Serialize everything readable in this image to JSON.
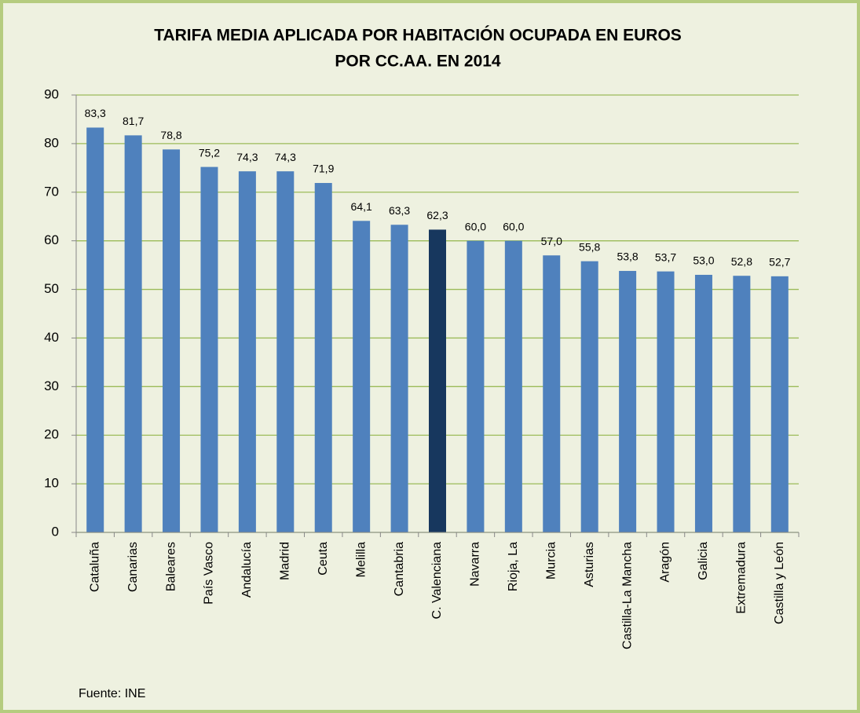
{
  "chart_data": {
    "type": "bar",
    "title": [
      "TARIFA MEDIA APLICADA POR HABITACIÓN OCUPADA EN EUROS",
      "POR CC.AA. EN 2014"
    ],
    "categories": [
      "Cataluña",
      "Canarias",
      "Baleares",
      "País Vasco",
      "Andalucía",
      "Madrid",
      "Ceuta",
      "Melilla",
      "Cantabria",
      "C. Valenciana",
      "Navarra",
      "Rioja, La",
      "Murcia",
      "Asturias",
      "Castilla-La Mancha",
      "Aragón",
      "Galicia",
      "Extremadura",
      "Castilla y León"
    ],
    "values": [
      83.3,
      81.7,
      78.8,
      75.2,
      74.3,
      74.3,
      71.9,
      64.1,
      63.3,
      62.3,
      60.0,
      60.0,
      57.0,
      55.8,
      53.8,
      53.7,
      53.0,
      52.8,
      52.7
    ],
    "value_labels": [
      "83,3",
      "81,7",
      "78,8",
      "75,2",
      "74,3",
      "74,3",
      "71,9",
      "64,1",
      "63,3",
      "62,3",
      "60,0",
      "60,0",
      "57,0",
      "55,8",
      "53,8",
      "53,7",
      "53,0",
      "52,8",
      "52,7"
    ],
    "colors": [
      "#4f81bd",
      "#4f81bd",
      "#4f81bd",
      "#4f81bd",
      "#4f81bd",
      "#4f81bd",
      "#4f81bd",
      "#4f81bd",
      "#4f81bd",
      "#17375e",
      "#4f81bd",
      "#4f81bd",
      "#4f81bd",
      "#4f81bd",
      "#4f81bd",
      "#4f81bd",
      "#4f81bd",
      "#4f81bd",
      "#4f81bd"
    ],
    "ylim": [
      0,
      90
    ],
    "yticks": [
      0,
      10,
      20,
      30,
      40,
      50,
      60,
      70,
      80,
      90
    ],
    "grid": true,
    "source": "Fuente: INE"
  }
}
